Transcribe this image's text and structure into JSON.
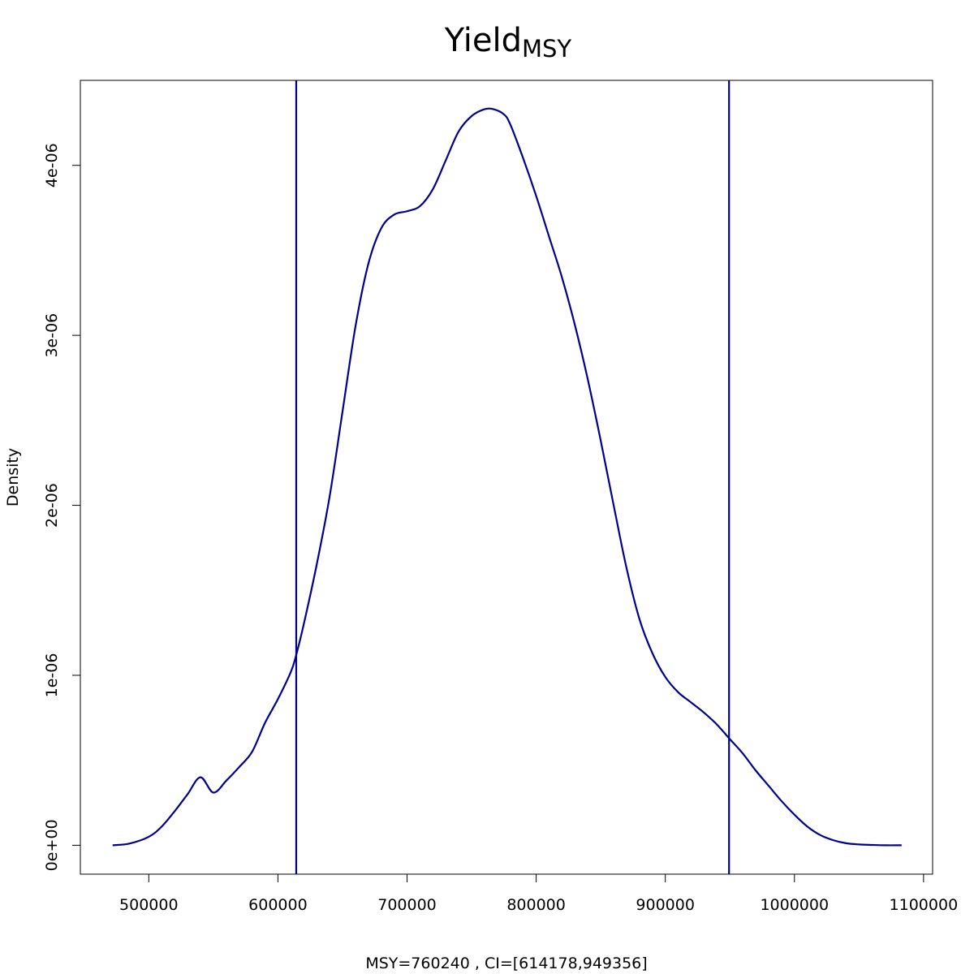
{
  "chart_data": {
    "type": "line",
    "title": "Yield",
    "title_subscript": "MSY",
    "xlabel": "MSY=760240 , CI=[614178,949356]",
    "ylabel": "Density",
    "xlim": [
      447000,
      1107000
    ],
    "ylim": [
      -1.7e-07,
      4.5e-06
    ],
    "x_ticks": [
      500000,
      600000,
      700000,
      800000,
      900000,
      1000000,
      1100000
    ],
    "x_tick_labels": [
      "500000",
      "600000",
      "700000",
      "800000",
      "900000",
      "1000000",
      "1100000"
    ],
    "y_ticks": [
      0,
      1e-06,
      2e-06,
      3e-06,
      4e-06
    ],
    "y_tick_labels": [
      "0e+00",
      "1e-06",
      "2e-06",
      "3e-06",
      "4e-06"
    ],
    "grid": false,
    "line_color": "#00008B",
    "vlines": [
      614178,
      949356
    ],
    "series": [
      {
        "x": [
          472000,
          485000,
          500000,
          510000,
          520000,
          530000,
          540000,
          550000,
          560000,
          570000,
          580000,
          590000,
          600000,
          610000,
          614178,
          620000,
          630000,
          640000,
          650000,
          660000,
          670000,
          680000,
          690000,
          700000,
          710000,
          720000,
          730000,
          740000,
          750000,
          760000,
          767000,
          775000,
          780000,
          790000,
          800000,
          810000,
          820000,
          830000,
          840000,
          850000,
          860000,
          870000,
          880000,
          890000,
          900000,
          910000,
          920000,
          930000,
          940000,
          949356,
          960000,
          970000,
          980000,
          990000,
          1000000,
          1010000,
          1020000,
          1030000,
          1040000,
          1050000,
          1060000,
          1070000,
          1083000
        ],
        "y": [
          0,
          1e-08,
          5e-08,
          1.1e-07,
          2e-07,
          3e-07,
          4e-07,
          3.1e-07,
          3.8e-07,
          4.6e-07,
          5.5e-07,
          7.2e-07,
          8.6e-07,
          1.02e-06,
          1.12e-06,
          1.3e-06,
          1.65e-06,
          2.05e-06,
          2.55e-06,
          3.05e-06,
          3.42e-06,
          3.63e-06,
          3.71e-06,
          3.73e-06,
          3.76e-06,
          3.86e-06,
          4.03e-06,
          4.2e-06,
          4.29e-06,
          4.33e-06,
          4.33e-06,
          4.3e-06,
          4.24e-06,
          4.04e-06,
          3.82e-06,
          3.58e-06,
          3.34e-06,
          3.06e-06,
          2.74e-06,
          2.38e-06,
          2e-06,
          1.63e-06,
          1.33e-06,
          1.13e-06,
          9.9e-07,
          9e-07,
          8.4e-07,
          7.8e-07,
          7.1e-07,
          6.3e-07,
          5.4e-07,
          4.4e-07,
          3.5e-07,
          2.6e-07,
          1.8e-07,
          1.1e-07,
          6e-08,
          3e-08,
          1.2e-08,
          5e-09,
          2e-09,
          0,
          0
        ]
      }
    ]
  }
}
